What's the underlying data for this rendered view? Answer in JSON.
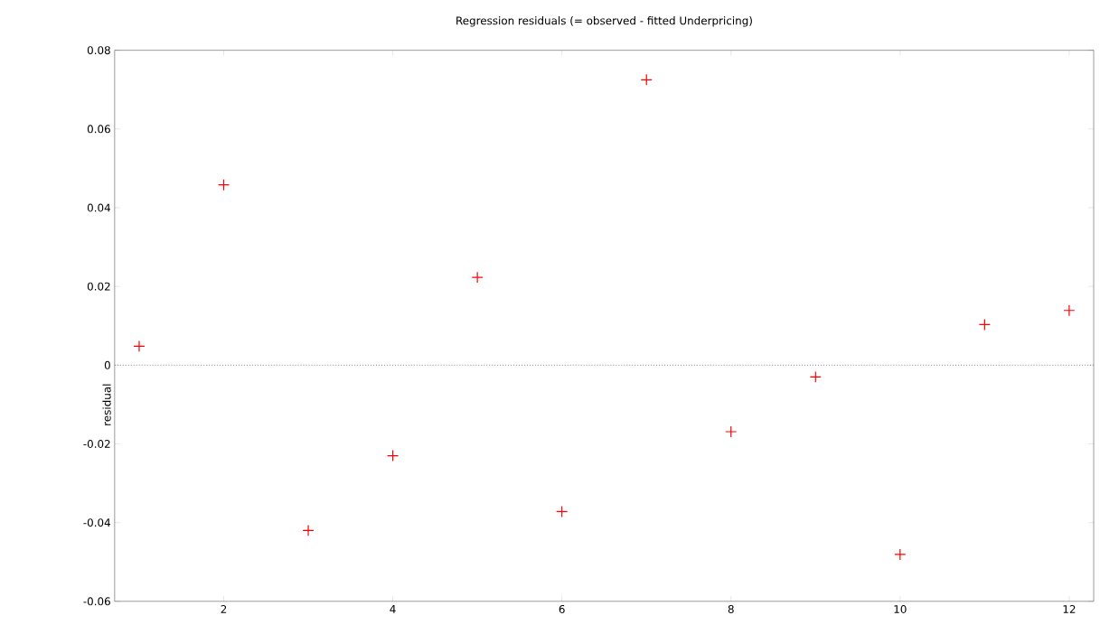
{
  "chart_data": {
    "type": "scatter",
    "title": "Regression residuals (= observed - fitted Underpricing)",
    "ylabel": "residual",
    "x": [
      1,
      2,
      3,
      4,
      5,
      6,
      7,
      8,
      9,
      10,
      11,
      12
    ],
    "values": [
      0.0048,
      0.0458,
      -0.042,
      -0.023,
      0.0223,
      -0.0372,
      0.0725,
      -0.0169,
      -0.003,
      -0.0481,
      0.0103,
      0.0139
    ],
    "color": "#ff0000",
    "marker": "cross",
    "xlim": [
      0.71,
      12.29
    ],
    "ylim": [
      -0.06,
      0.08
    ],
    "xticks": [
      2,
      4,
      6,
      8,
      10,
      12
    ],
    "yticks": [
      -0.06,
      -0.04,
      -0.02,
      0,
      0.02,
      0.04,
      0.06,
      0.08
    ],
    "ref_lines": [
      {
        "axis": "y",
        "value": 0,
        "color": "#808080",
        "line_style": "dotted"
      }
    ]
  }
}
